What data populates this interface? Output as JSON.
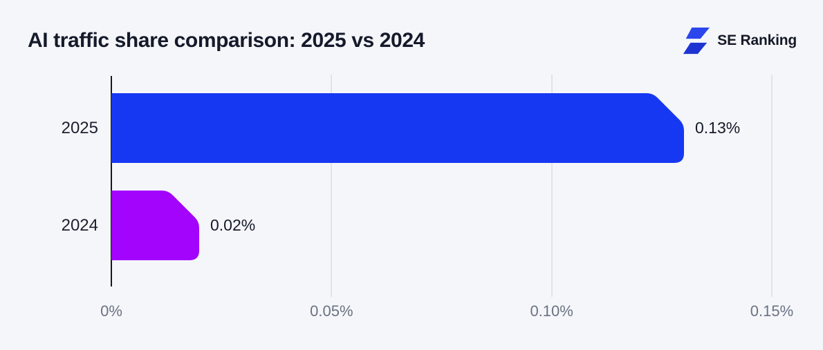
{
  "header": {
    "title": "AI traffic share comparison: 2025 vs 2024",
    "brand": "SE Ranking"
  },
  "colors": {
    "background": "#f5f6f9",
    "bar_2025": "#1638f3",
    "bar_2024": "#a304fb",
    "axis_line": "#16181d",
    "gridline": "#e0e3ea",
    "tick_text": "#6a7284",
    "text_dark": "#151a2b",
    "logo_blue_top": "#2b46ec",
    "logo_blue_bottom": "#1e34d2"
  },
  "chart_data": {
    "type": "bar",
    "orientation": "horizontal",
    "title": "AI traffic share comparison: 2025 vs 2024",
    "categories": [
      "2025",
      "2024"
    ],
    "values": [
      0.13,
      0.02
    ],
    "value_labels": [
      "0.13%",
      "0.02%"
    ],
    "bar_colors": [
      "#1638f3",
      "#a304fb"
    ],
    "xlim": [
      0,
      0.15
    ],
    "x_ticks": [
      0,
      0.05,
      0.1,
      0.15
    ],
    "x_tick_labels": [
      "0%",
      "0.05%",
      "0.10%",
      "0.15%"
    ],
    "xlabel": "",
    "ylabel": "",
    "grid": "vertical-gridlines",
    "legend": "none",
    "unit": "%"
  }
}
